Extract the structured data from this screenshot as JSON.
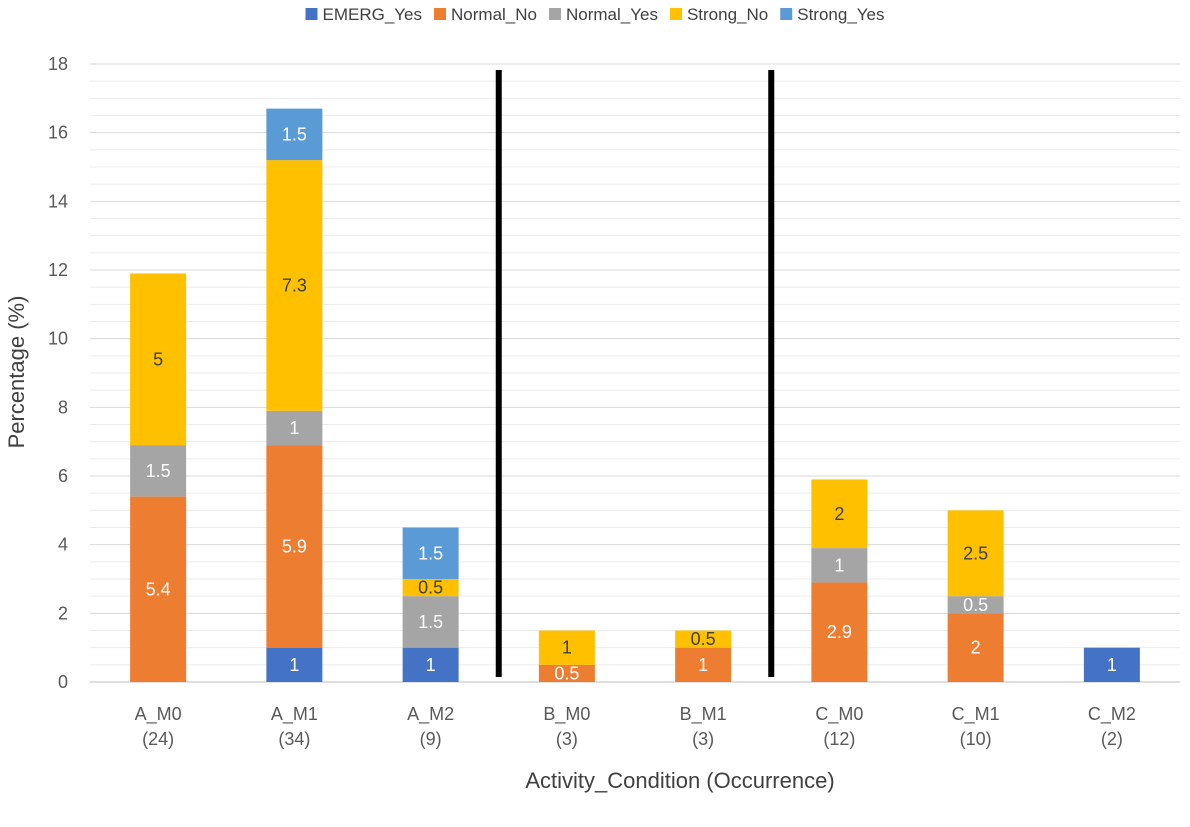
{
  "chart_data": {
    "type": "bar",
    "stacked": true,
    "xlabel": "Activity_Condition (Occurrence)",
    "ylabel": "Percentage (%)",
    "ylim": [
      0,
      18
    ],
    "yticks": [
      0,
      2,
      4,
      6,
      8,
      10,
      12,
      14,
      16,
      18
    ],
    "minor_gridlines": true,
    "legend_position": "top",
    "categories": [
      [
        "A_M0",
        "(24)"
      ],
      [
        "A_M1",
        "(34)"
      ],
      [
        "A_M2",
        "(9)"
      ],
      [
        "B_M0",
        "(3)"
      ],
      [
        "B_M1",
        "(3)"
      ],
      [
        "C_M0",
        "(12)"
      ],
      [
        "C_M1",
        "(10)"
      ],
      [
        "C_M2",
        "(2)"
      ]
    ],
    "separators_between_categories": [
      [
        2,
        3
      ],
      [
        4,
        5
      ]
    ],
    "series": [
      {
        "name": "EMERG_Yes",
        "color": "#4472C4",
        "label_color": "#ffffff",
        "values": [
          0,
          1,
          1,
          0,
          0,
          0,
          0,
          1
        ]
      },
      {
        "name": "Normal_No",
        "color": "#ED7D31",
        "label_color": "#ffffff",
        "values": [
          5.4,
          5.9,
          0,
          0.5,
          1,
          2.9,
          2,
          0
        ]
      },
      {
        "name": "Normal_Yes",
        "color": "#A5A5A5",
        "label_color": "#ffffff",
        "values": [
          1.5,
          1,
          1.5,
          0,
          0,
          1,
          0.5,
          0
        ]
      },
      {
        "name": "Strong_No",
        "color": "#FFC000",
        "label_color": "#404040",
        "values": [
          5,
          7.3,
          0.5,
          1,
          0.5,
          2,
          2.5,
          0
        ]
      },
      {
        "name": "Strong_Yes",
        "color": "#5B9BD5",
        "label_color": "#ffffff",
        "values": [
          0,
          1.5,
          1.5,
          0,
          0,
          0,
          0,
          0
        ]
      }
    ]
  }
}
